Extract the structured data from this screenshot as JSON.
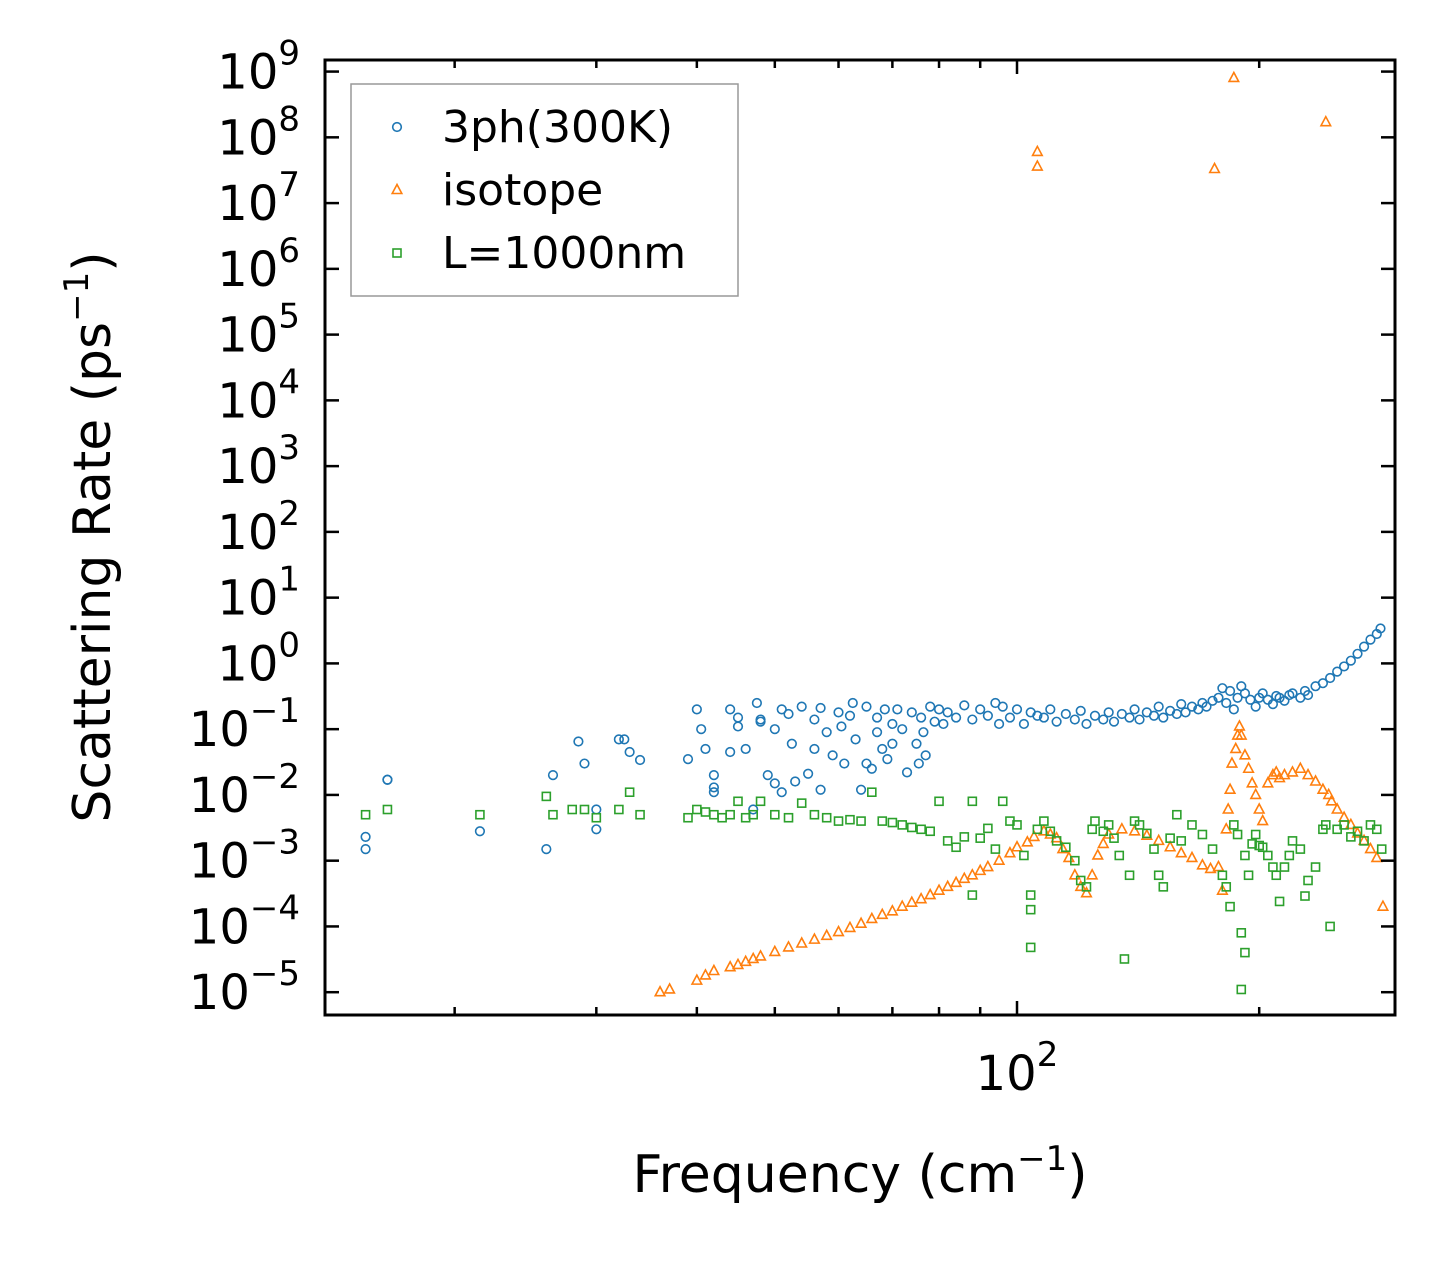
{
  "chart_data": {
    "type": "scatter",
    "title": "",
    "xlabel": "Frequency (cm$^{-1}$)",
    "ylabel": "Scattering Rate (ps$^{-1}$)",
    "xlabel_base": "Frequency (cm",
    "xlabel_sup": "−1",
    "xlabel_tail": ")",
    "ylabel_base": "Scattering Rate (ps",
    "ylabel_sup": "−1",
    "ylabel_tail": ")",
    "xscale": "log",
    "yscale": "log",
    "xlim": [
      13.8,
      295
    ],
    "ylim": [
      4.5e-06,
      1500000000
    ],
    "xticks": [
      {
        "value": 100,
        "base": "10",
        "exp": "2"
      }
    ],
    "yticks": [
      {
        "value": 1000000000.0,
        "base": "10",
        "exp": "9"
      },
      {
        "value": 100000000.0,
        "base": "10",
        "exp": "8"
      },
      {
        "value": 10000000.0,
        "base": "10",
        "exp": "7"
      },
      {
        "value": 1000000.0,
        "base": "10",
        "exp": "6"
      },
      {
        "value": 100000.0,
        "base": "10",
        "exp": "5"
      },
      {
        "value": 10000.0,
        "base": "10",
        "exp": "4"
      },
      {
        "value": 1000.0,
        "base": "10",
        "exp": "3"
      },
      {
        "value": 100.0,
        "base": "10",
        "exp": "2"
      },
      {
        "value": 10.0,
        "base": "10",
        "exp": "1"
      },
      {
        "value": 1.0,
        "base": "10",
        "exp": "0"
      },
      {
        "value": 0.1,
        "base": "10",
        "exp": "−1"
      },
      {
        "value": 0.01,
        "base": "10",
        "exp": "−2"
      },
      {
        "value": 0.001,
        "base": "10",
        "exp": "−3"
      },
      {
        "value": 0.0001,
        "base": "10",
        "exp": "−4"
      },
      {
        "value": 1e-05,
        "base": "10",
        "exp": "−5"
      }
    ],
    "legend_position": "top-left",
    "series": [
      {
        "name": "3ph(300K)",
        "marker": "circle",
        "color": "#1f77b4",
        "x": [
          15.5,
          15.5,
          16.5,
          16.5,
          21.5,
          26,
          26.5,
          28.5,
          29,
          30,
          30,
          32,
          32.5,
          33,
          34,
          39,
          40,
          40.5,
          41,
          42,
          42,
          42,
          44,
          44,
          45,
          45,
          46,
          47,
          47.5,
          48,
          48,
          49,
          50,
          50,
          51,
          51,
          52,
          52.5,
          53,
          54,
          55,
          56,
          56,
          57,
          57,
          58,
          59,
          60,
          60.5,
          61,
          62,
          62.5,
          63,
          64,
          65,
          65,
          66,
          67,
          67,
          68,
          68.5,
          69,
          70,
          70,
          71,
          72,
          73,
          74,
          75,
          75.5,
          76,
          76.5,
          77,
          78,
          79,
          80,
          81,
          82,
          84,
          86,
          88,
          90,
          92,
          94,
          95,
          96,
          98,
          100,
          102,
          104,
          106,
          108,
          110,
          112,
          115,
          118,
          120,
          122,
          125,
          128,
          130,
          132,
          135,
          138,
          140,
          142,
          145,
          148,
          150,
          152,
          155,
          158,
          160,
          162,
          165,
          168,
          170,
          172,
          175,
          178,
          180,
          182,
          184,
          186,
          188,
          190,
          192,
          195,
          198,
          200,
          202,
          205,
          208,
          210,
          212,
          215,
          218,
          220,
          225,
          228,
          230,
          235,
          240,
          245,
          250,
          255,
          260,
          265,
          270,
          275,
          280,
          283
        ],
        "y": [
          0.0015,
          0.0023,
          0.017,
          0.017,
          0.0028,
          0.0015,
          0.02,
          0.065,
          0.03,
          0.006,
          0.003,
          0.07,
          0.07,
          0.045,
          0.034,
          0.035,
          0.2,
          0.1,
          0.05,
          0.013,
          0.011,
          0.02,
          0.2,
          0.045,
          0.15,
          0.11,
          0.05,
          0.006,
          0.25,
          0.13,
          0.14,
          0.02,
          0.1,
          0.015,
          0.2,
          0.011,
          0.17,
          0.06,
          0.016,
          0.22,
          0.021,
          0.05,
          0.14,
          0.012,
          0.21,
          0.09,
          0.04,
          0.18,
          0.11,
          0.03,
          0.16,
          0.25,
          0.07,
          0.012,
          0.22,
          0.03,
          0.025,
          0.15,
          0.09,
          0.05,
          0.2,
          0.035,
          0.12,
          0.06,
          0.2,
          0.1,
          0.022,
          0.18,
          0.06,
          0.03,
          0.15,
          0.09,
          0.04,
          0.22,
          0.13,
          0.2,
          0.12,
          0.18,
          0.15,
          0.23,
          0.14,
          0.2,
          0.16,
          0.25,
          0.12,
          0.22,
          0.15,
          0.2,
          0.12,
          0.18,
          0.16,
          0.15,
          0.2,
          0.13,
          0.17,
          0.14,
          0.19,
          0.12,
          0.16,
          0.14,
          0.18,
          0.13,
          0.17,
          0.15,
          0.2,
          0.14,
          0.18,
          0.16,
          0.22,
          0.15,
          0.19,
          0.17,
          0.24,
          0.18,
          0.22,
          0.2,
          0.25,
          0.22,
          0.27,
          0.3,
          0.42,
          0.25,
          0.38,
          0.2,
          0.3,
          0.45,
          0.35,
          0.28,
          0.22,
          0.3,
          0.35,
          0.28,
          0.24,
          0.32,
          0.3,
          0.27,
          0.33,
          0.35,
          0.3,
          0.38,
          0.33,
          0.45,
          0.5,
          0.6,
          0.75,
          0.9,
          1.1,
          1.4,
          1.8,
          2.3,
          2.8,
          3.4
        ]
      },
      {
        "name": "isotope",
        "marker": "triangle",
        "color": "#ff7f0e",
        "x": [
          36,
          37,
          40,
          41,
          42,
          44,
          45,
          46,
          47,
          48,
          50,
          52,
          54,
          56,
          58,
          60,
          62,
          64,
          66,
          68,
          70,
          72,
          74,
          76,
          78,
          80,
          82,
          84,
          86,
          88,
          90,
          92,
          95,
          98,
          100,
          103,
          105,
          106,
          106,
          108,
          110,
          112,
          114,
          116,
          118,
          120,
          122,
          124,
          126,
          128,
          130,
          135,
          140,
          145,
          150,
          155,
          160,
          165,
          170,
          174,
          176,
          178,
          180,
          182,
          183,
          184,
          185,
          186,
          187,
          188,
          189,
          190,
          192,
          194,
          196,
          198,
          200,
          202,
          205,
          208,
          210,
          212,
          215,
          220,
          225,
          230,
          235,
          240,
          242,
          244,
          246,
          250,
          255,
          260,
          265,
          270,
          275,
          280,
          285
        ],
        "y": [
          1e-05,
          1.1e-05,
          1.5e-05,
          1.8e-05,
          2.1e-05,
          2.4e-05,
          2.6e-05,
          2.9e-05,
          3.2e-05,
          3.5e-05,
          4.1e-05,
          4.8e-05,
          5.5e-05,
          6.3e-05,
          7.2e-05,
          8.2e-05,
          9.5e-05,
          0.00011,
          0.00013,
          0.00015,
          0.00017,
          0.0002,
          0.00023,
          0.00026,
          0.0003,
          0.00035,
          0.0004,
          0.00046,
          0.00053,
          0.0006,
          0.0007,
          0.0008,
          0.001,
          0.0013,
          0.0016,
          0.0019,
          0.0023,
          60000000,
          36000000,
          0.0028,
          0.0025,
          0.0022,
          0.0015,
          0.0011,
          0.0006,
          0.0004,
          0.00032,
          0.0006,
          0.0012,
          0.0018,
          0.0025,
          0.003,
          0.0028,
          0.0024,
          0.002,
          0.0016,
          0.0013,
          0.0011,
          0.00085,
          0.00075,
          33000000,
          0.0008,
          0.00035,
          0.003,
          0.006,
          0.012,
          0.03,
          800000000,
          0.05,
          0.08,
          0.11,
          0.08,
          0.04,
          0.025,
          0.015,
          0.01,
          0.006,
          0.004,
          0.015,
          0.02,
          0.022,
          0.018,
          0.02,
          0.022,
          0.025,
          0.02,
          0.016,
          0.012,
          170000000,
          0.01,
          0.008,
          0.006,
          0.0045,
          0.0035,
          0.0026,
          0.002,
          0.0015,
          0.0011,
          0.0002
        ]
      },
      {
        "name": "L=1000nm",
        "marker": "square",
        "color": "#2ca02c",
        "x": [
          15.5,
          16.5,
          21.5,
          26,
          26.5,
          28,
          29,
          30,
          32,
          33,
          34,
          39,
          40,
          41,
          42,
          43,
          44,
          45,
          46,
          47,
          48,
          50,
          52,
          54,
          56,
          58,
          60,
          62,
          64,
          66,
          68,
          70,
          72,
          74,
          76,
          78,
          80,
          82,
          84,
          86,
          88,
          88,
          90,
          92,
          94,
          96,
          98,
          100,
          102,
          104,
          104,
          104,
          106,
          108,
          110,
          112,
          115,
          118,
          120,
          122,
          124,
          125,
          128,
          130,
          132,
          134,
          136,
          138,
          140,
          142,
          145,
          148,
          150,
          152,
          155,
          158,
          160,
          165,
          170,
          175,
          180,
          182,
          184,
          186,
          188,
          190,
          190,
          192,
          192,
          194,
          196,
          198,
          200,
          202,
          205,
          208,
          210,
          212,
          215,
          218,
          220,
          225,
          228,
          230,
          235,
          240,
          242,
          245,
          250,
          255,
          260,
          265,
          270,
          275,
          280,
          284
        ],
        "y": [
          0.005,
          0.006,
          0.005,
          0.0095,
          0.005,
          0.006,
          0.006,
          0.0045,
          0.006,
          0.011,
          0.005,
          0.0045,
          0.006,
          0.0055,
          0.005,
          0.0045,
          0.005,
          0.008,
          0.0045,
          0.005,
          0.008,
          0.005,
          0.0045,
          0.0075,
          0.005,
          0.0045,
          0.004,
          0.0042,
          0.004,
          0.011,
          0.004,
          0.0038,
          0.0035,
          0.0032,
          0.003,
          0.0028,
          0.008,
          0.002,
          0.0016,
          0.0023,
          0.0003,
          0.008,
          0.0022,
          0.0031,
          0.0015,
          0.008,
          0.004,
          0.0035,
          0.0012,
          0.0003,
          0.00018,
          4.8e-05,
          0.003,
          0.004,
          0.0028,
          0.002,
          0.0016,
          0.001,
          0.0005,
          0.0004,
          0.003,
          0.004,
          0.0028,
          0.0035,
          0.0022,
          0.0012,
          3.2e-05,
          0.0006,
          0.004,
          0.0035,
          0.0026,
          0.0015,
          0.0006,
          0.0004,
          0.0022,
          0.005,
          0.002,
          0.0035,
          0.0025,
          0.0015,
          0.0006,
          0.0004,
          0.0002,
          0.0035,
          0.0025,
          8e-05,
          1.1e-05,
          4e-05,
          0.0012,
          0.0006,
          0.0018,
          0.0025,
          0.0017,
          0.0016,
          0.0012,
          0.0008,
          0.0006,
          0.00024,
          0.0008,
          0.0012,
          0.002,
          0.0015,
          0.00029,
          0.0005,
          0.0008,
          0.003,
          0.0035,
          0.0001,
          0.003,
          0.0035,
          0.0023,
          0.0028,
          0.002,
          0.0035,
          0.003,
          0.0015
        ]
      }
    ]
  }
}
